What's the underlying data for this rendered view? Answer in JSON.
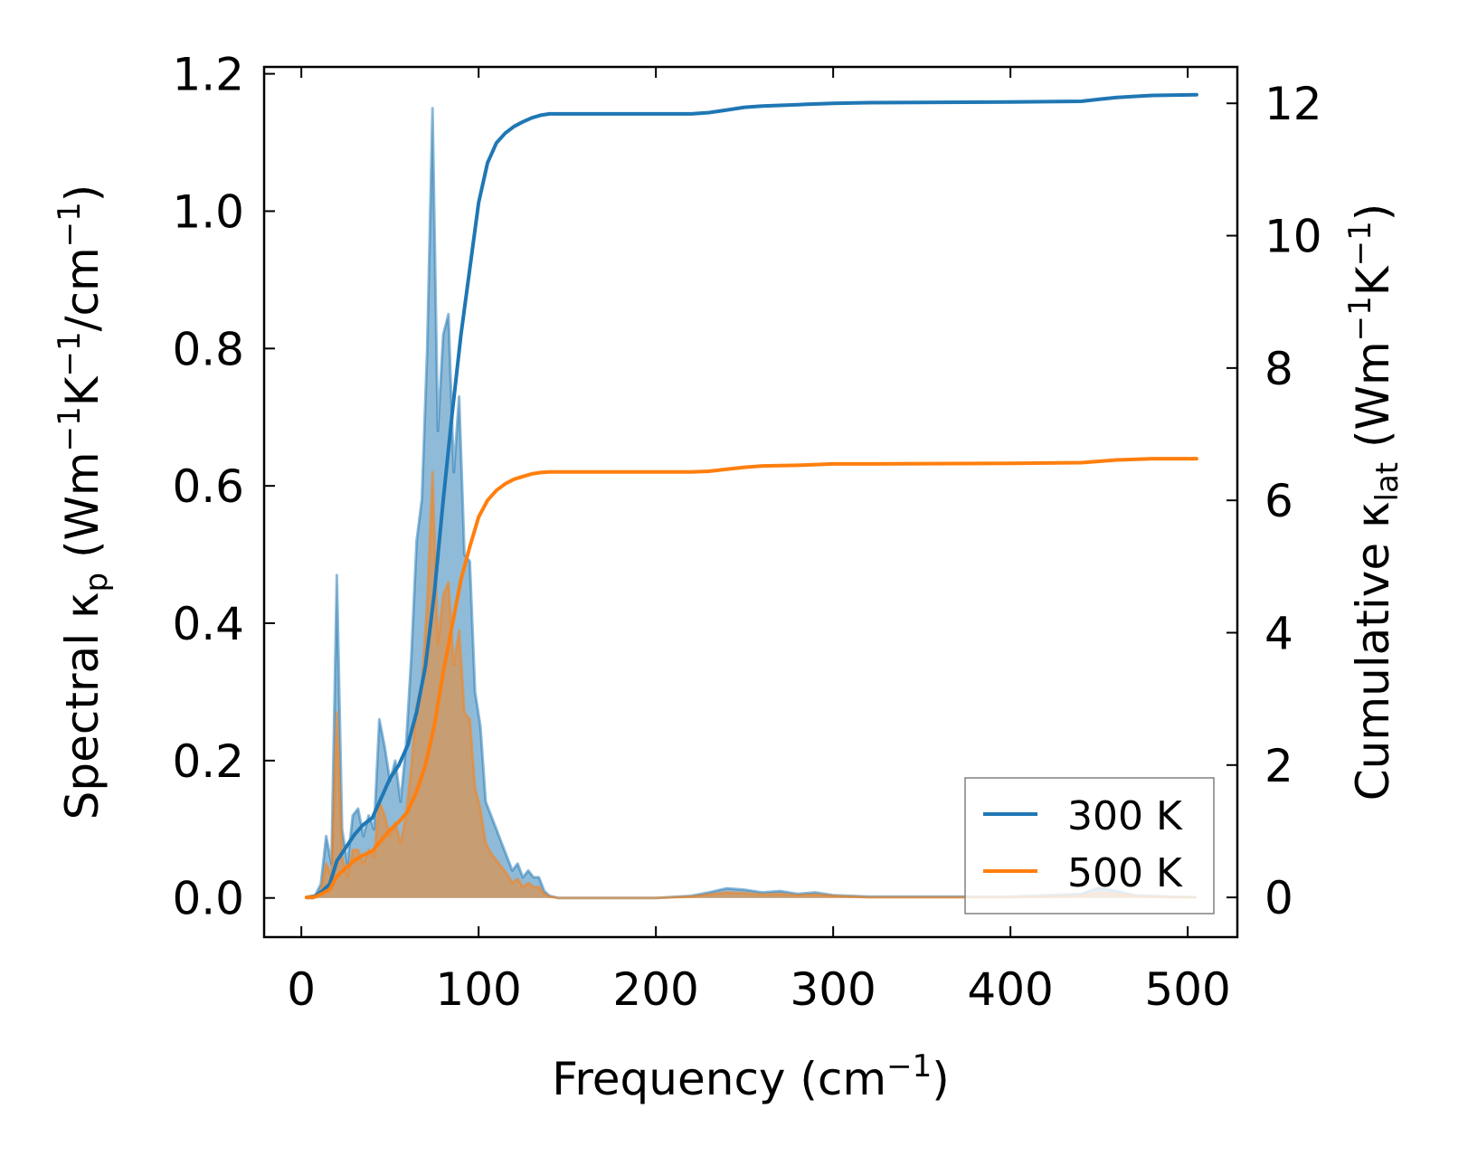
{
  "chart_data": {
    "type": "area",
    "xlabel": "Frequency (cm",
    "xlabel_sup": "−1",
    "xlabel_end": ")",
    "ylabel_left": {
      "pre": "Spectral κ",
      "sub": "p",
      "mid1": " (Wm",
      "sup1": "−1",
      "mid2": "K",
      "sup2": "−1",
      "mid3": "/cm",
      "sup3": "−1",
      "post": ")"
    },
    "ylabel_right": {
      "pre": "Cumulative κ",
      "sub": "lat",
      "mid1": " (Wm",
      "sup1": "−1",
      "mid2": "K",
      "sup2": "−1",
      "post": ")"
    },
    "xlim": [
      -21,
      528
    ],
    "ylim_left": [
      -0.057,
      1.21
    ],
    "ylim_right": [
      -0.6,
      12.55
    ],
    "xticks": [
      0,
      100,
      200,
      300,
      400,
      500
    ],
    "yticks_left": [
      0.0,
      0.2,
      0.4,
      0.6,
      0.8,
      1.0,
      1.2
    ],
    "yticks_left_labels": [
      "0.0",
      "0.2",
      "0.4",
      "0.6",
      "0.8",
      "1.0",
      "1.2"
    ],
    "yticks_right": [
      0,
      2,
      4,
      6,
      8,
      10,
      12
    ],
    "legend_position": "lower-right",
    "spectral": [
      {
        "name": "300 K",
        "color": "#1f77b4",
        "fill_opacity": 0.5,
        "x": [
          3,
          7,
          11,
          14,
          17,
          20,
          23,
          26,
          29,
          32,
          35,
          38,
          41,
          44,
          47,
          50,
          53,
          56,
          59,
          62,
          65,
          68,
          71,
          74,
          77,
          80,
          83,
          86,
          89,
          92,
          95,
          98,
          101,
          104,
          107,
          110,
          113,
          116,
          119,
          122,
          125,
          128,
          131,
          134,
          137,
          140,
          145,
          150,
          200,
          220,
          230,
          240,
          250,
          260,
          270,
          280,
          290,
          300,
          320,
          400,
          440,
          450,
          460,
          470,
          480,
          490,
          505
        ],
        "y": [
          0,
          0,
          0.02,
          0.09,
          0.05,
          0.47,
          0.1,
          0.05,
          0.12,
          0.13,
          0.09,
          0.12,
          0.1,
          0.26,
          0.22,
          0.17,
          0.2,
          0.14,
          0.22,
          0.35,
          0.52,
          0.58,
          0.8,
          1.15,
          0.68,
          0.82,
          0.85,
          0.62,
          0.73,
          0.5,
          0.49,
          0.3,
          0.25,
          0.14,
          0.12,
          0.1,
          0.08,
          0.06,
          0.04,
          0.05,
          0.03,
          0.04,
          0.03,
          0.03,
          0.01,
          0.003,
          0,
          0,
          0,
          0.003,
          0.008,
          0.014,
          0.012,
          0.008,
          0.01,
          0.006,
          0.008,
          0.004,
          0.002,
          0.002,
          0.006,
          0.015,
          0.01,
          0.004,
          0.003,
          0.002,
          0.001
        ]
      },
      {
        "name": "500 K",
        "color": "#ff7f0e",
        "fill_opacity": 0.5,
        "x": [
          3,
          7,
          11,
          14,
          17,
          20,
          23,
          26,
          29,
          32,
          35,
          38,
          41,
          44,
          47,
          50,
          53,
          56,
          59,
          62,
          65,
          68,
          71,
          74,
          77,
          80,
          83,
          86,
          89,
          92,
          95,
          98,
          101,
          104,
          107,
          110,
          113,
          116,
          119,
          122,
          125,
          128,
          131,
          134,
          137,
          140,
          145,
          150,
          200,
          220,
          230,
          240,
          250,
          260,
          270,
          280,
          290,
          300,
          320,
          400,
          440,
          450,
          460,
          470,
          480,
          490,
          505
        ],
        "y": [
          0,
          0,
          0.01,
          0.05,
          0.03,
          0.27,
          0.06,
          0.03,
          0.07,
          0.07,
          0.05,
          0.07,
          0.06,
          0.14,
          0.12,
          0.09,
          0.11,
          0.08,
          0.12,
          0.19,
          0.28,
          0.31,
          0.43,
          0.62,
          0.37,
          0.44,
          0.46,
          0.34,
          0.39,
          0.27,
          0.26,
          0.16,
          0.13,
          0.08,
          0.065,
          0.055,
          0.045,
          0.035,
          0.022,
          0.028,
          0.016,
          0.022,
          0.016,
          0.016,
          0.006,
          0.002,
          0,
          0,
          0,
          0.002,
          0.005,
          0.008,
          0.007,
          0.005,
          0.006,
          0.004,
          0.005,
          0.003,
          0.001,
          0.001,
          0.003,
          0.008,
          0.006,
          0.003,
          0.002,
          0.001,
          0.001
        ]
      }
    ],
    "cumulative": [
      {
        "name": "300 K",
        "color": "#1f77b4",
        "x": [
          3,
          8,
          12,
          16,
          20,
          25,
          30,
          35,
          40,
          45,
          50,
          55,
          60,
          65,
          70,
          75,
          80,
          85,
          90,
          95,
          100,
          105,
          110,
          115,
          120,
          125,
          130,
          135,
          140,
          150,
          200,
          220,
          230,
          240,
          250,
          260,
          280,
          300,
          320,
          400,
          440,
          450,
          460,
          480,
          505
        ],
        "y": [
          0,
          0.02,
          0.1,
          0.2,
          0.55,
          0.75,
          0.95,
          1.1,
          1.2,
          1.5,
          1.8,
          2.0,
          2.3,
          2.8,
          3.5,
          4.6,
          6.0,
          7.3,
          8.5,
          9.5,
          10.5,
          11.1,
          11.4,
          11.55,
          11.65,
          11.72,
          11.78,
          11.82,
          11.84,
          11.84,
          11.84,
          11.84,
          11.86,
          11.9,
          11.94,
          11.96,
          11.98,
          12.0,
          12.01,
          12.02,
          12.03,
          12.06,
          12.09,
          12.12,
          12.13
        ]
      },
      {
        "name": "500 K",
        "color": "#ff7f0e",
        "x": [
          3,
          8,
          12,
          16,
          20,
          25,
          30,
          35,
          40,
          45,
          50,
          55,
          60,
          65,
          70,
          75,
          80,
          85,
          90,
          95,
          100,
          105,
          110,
          115,
          120,
          125,
          130,
          135,
          140,
          150,
          200,
          220,
          230,
          240,
          250,
          260,
          280,
          300,
          320,
          400,
          440,
          450,
          460,
          480,
          505
        ],
        "y": [
          0,
          0.01,
          0.06,
          0.12,
          0.32,
          0.44,
          0.56,
          0.64,
          0.7,
          0.86,
          1.02,
          1.14,
          1.3,
          1.6,
          2.0,
          2.6,
          3.4,
          4.1,
          4.8,
          5.3,
          5.75,
          6.0,
          6.15,
          6.25,
          6.32,
          6.36,
          6.4,
          6.42,
          6.43,
          6.43,
          6.43,
          6.43,
          6.44,
          6.47,
          6.5,
          6.52,
          6.53,
          6.55,
          6.55,
          6.56,
          6.57,
          6.59,
          6.61,
          6.63,
          6.63
        ]
      }
    ],
    "legend": [
      {
        "label": "300 K",
        "color": "#1f77b4"
      },
      {
        "label": "500 K",
        "color": "#ff7f0e"
      }
    ]
  }
}
